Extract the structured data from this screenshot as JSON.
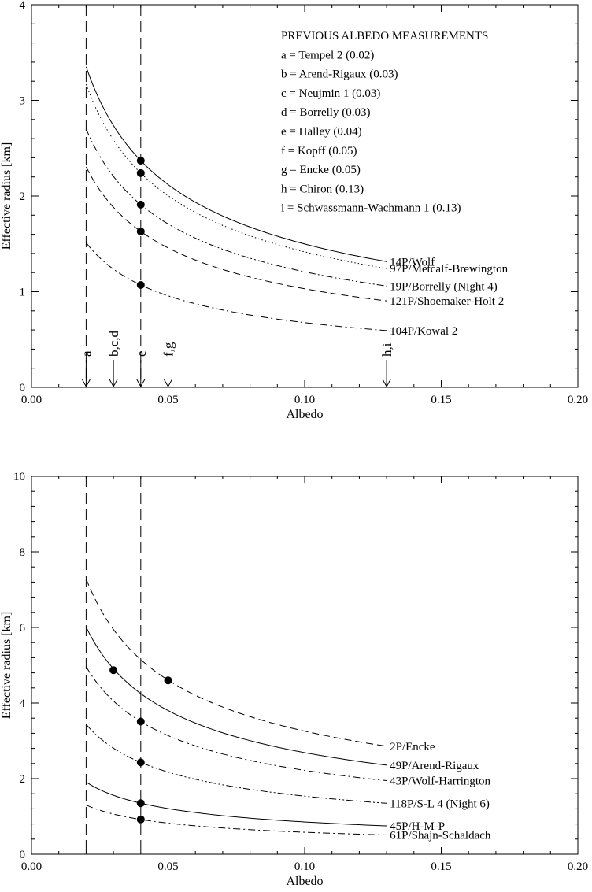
{
  "chart_data": [
    {
      "type": "line",
      "xlabel": "Albedo",
      "ylabel": "Effective radius [km]",
      "xlim": [
        0.0,
        0.2
      ],
      "ylim": [
        0,
        4
      ],
      "x_ticks": [
        0.0,
        0.05,
        0.1,
        0.15,
        0.2
      ],
      "x_tick_labels": [
        "0.00",
        "0.05",
        "0.10",
        "0.15",
        "0.20"
      ],
      "y_ticks": [
        0,
        1,
        2,
        3,
        4
      ],
      "y_tick_labels": [
        "0",
        "1",
        "2",
        "3",
        "4"
      ],
      "vertical_lines": [
        0.02,
        0.04
      ],
      "series": [
        {
          "name": "14P/Wolf",
          "dash": "solid",
          "r_at_004": 2.37,
          "x_start": 0.02,
          "x_end": 0.13,
          "marker": {
            "x": 0.04,
            "y": 2.37
          }
        },
        {
          "name": "97P/Metcalf-Brewington",
          "dash": "dot",
          "r_at_004": 2.24,
          "x_start": 0.02,
          "x_end": 0.13,
          "marker": {
            "x": 0.04,
            "y": 2.24
          }
        },
        {
          "name": "19P/Borrelly (Night 4)",
          "dash": "dashdotdot",
          "r_at_004": 1.91,
          "x_start": 0.02,
          "x_end": 0.13,
          "marker": {
            "x": 0.04,
            "y": 1.91
          }
        },
        {
          "name": "121P/Shoemaker-Holt 2",
          "dash": "dash",
          "r_at_004": 1.63,
          "x_start": 0.02,
          "x_end": 0.13,
          "marker": {
            "x": 0.04,
            "y": 1.63
          }
        },
        {
          "name": "104P/Kowal 2",
          "dash": "dashdot",
          "r_at_004": 1.07,
          "x_start": 0.02,
          "x_end": 0.13,
          "marker": {
            "x": 0.04,
            "y": 1.07
          }
        }
      ],
      "albedo_arrows": [
        {
          "label": "a",
          "x": 0.02
        },
        {
          "label": "b,c,d",
          "x": 0.03
        },
        {
          "label": "e",
          "x": 0.04
        },
        {
          "label": "f,g",
          "x": 0.05
        },
        {
          "label": "h,i",
          "x": 0.13
        }
      ],
      "legend_title": "PREVIOUS ALBEDO MEASUREMENTS",
      "legend_entries": [
        "a = Tempel 2 (0.02)",
        "b = Arend-Rigaux (0.03)",
        "c = Neujmin 1 (0.03)",
        "d = Borrelly (0.03)",
        "e = Halley (0.04)",
        "f = Kopff (0.05)",
        "g = Encke (0.05)",
        "h = Chiron (0.13)",
        "i = Schwassmann-Wachmann 1 (0.13)"
      ],
      "legend_position": "top-right"
    },
    {
      "type": "line",
      "xlabel": "Albedo",
      "ylabel": "Effective radius [km]",
      "xlim": [
        0.0,
        0.2
      ],
      "ylim": [
        0,
        10
      ],
      "x_ticks": [
        0.0,
        0.05,
        0.1,
        0.15,
        0.2
      ],
      "x_tick_labels": [
        "0.00",
        "0.05",
        "0.10",
        "0.15",
        "0.20"
      ],
      "y_ticks": [
        0,
        2,
        4,
        6,
        8,
        10
      ],
      "y_tick_labels": [
        "0",
        "2",
        "4",
        "6",
        "8",
        "10"
      ],
      "vertical_lines": [
        0.02,
        0.04
      ],
      "series": [
        {
          "name": "2P/Encke",
          "dash": "dash",
          "r_at_004": 5.15,
          "x_start": 0.02,
          "x_end": 0.13,
          "marker": {
            "x": 0.05,
            "y": 4.6
          }
        },
        {
          "name": "49P/Arend-Rigaux",
          "dash": "solid",
          "r_at_004": 4.25,
          "x_start": 0.02,
          "x_end": 0.13,
          "marker": {
            "x": 0.03,
            "y": 4.87
          }
        },
        {
          "name": "43P/Wolf-Harrington",
          "dash": "dashdot",
          "r_at_004": 3.51,
          "x_start": 0.02,
          "x_end": 0.13,
          "marker": {
            "x": 0.04,
            "y": 3.51
          }
        },
        {
          "name": "118P/S-L 4 (Night 6)",
          "dash": "dashdotdot",
          "r_at_004": 2.43,
          "x_start": 0.02,
          "x_end": 0.13,
          "marker": {
            "x": 0.04,
            "y": 2.43
          }
        },
        {
          "name": "45P/H-M-P",
          "dash": "solid",
          "r_at_004": 1.35,
          "x_start": 0.02,
          "x_end": 0.13,
          "marker": {
            "x": 0.04,
            "y": 1.35
          }
        },
        {
          "name": "61P/Shajn-Schaldach",
          "dash": "dashdot",
          "r_at_004": 0.92,
          "x_start": 0.02,
          "x_end": 0.13,
          "marker": {
            "x": 0.04,
            "y": 0.92
          }
        }
      ]
    }
  ]
}
